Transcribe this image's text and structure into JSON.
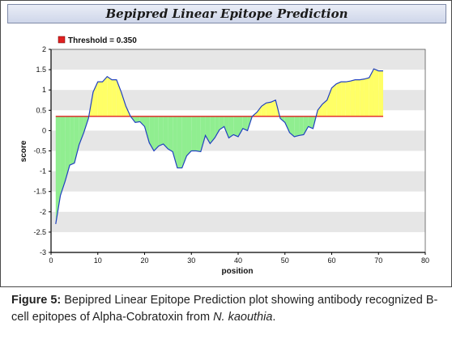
{
  "chart_data": {
    "type": "area",
    "title": "Bepipred Linear Epitope Prediction",
    "legend_label": "Threshold = 0.350",
    "threshold": 0.35,
    "xlabel": "position",
    "ylabel": "score",
    "xlim": [
      0,
      80
    ],
    "ylim": [
      -3,
      2
    ],
    "x_ticks": [
      "0",
      "10",
      "20",
      "30",
      "40",
      "50",
      "60",
      "70",
      "80"
    ],
    "y_ticks": [
      "2",
      "1.5",
      "1",
      "0.5",
      "0",
      "-0.5",
      "-1",
      "-1.5",
      "-2",
      "-2.5",
      "-3"
    ],
    "colors": {
      "line": "#2040c0",
      "threshold": "#e02020",
      "above": "#ffff66",
      "below": "#90ee90",
      "band": "#e6e6e6"
    },
    "x": [
      1,
      2,
      3,
      4,
      5,
      6,
      7,
      8,
      9,
      10,
      11,
      12,
      13,
      14,
      15,
      16,
      17,
      18,
      19,
      20,
      21,
      22,
      23,
      24,
      25,
      26,
      27,
      28,
      29,
      30,
      31,
      32,
      33,
      34,
      35,
      36,
      37,
      38,
      39,
      40,
      41,
      42,
      43,
      44,
      45,
      46,
      47,
      48,
      49,
      50,
      51,
      52,
      53,
      54,
      55,
      56,
      57,
      58,
      59,
      60,
      61,
      62,
      63,
      64,
      65,
      66,
      67,
      68,
      69,
      70,
      71
    ],
    "values": [
      -2.3,
      -1.6,
      -1.25,
      -0.85,
      -0.8,
      -0.35,
      -0.05,
      0.3,
      0.95,
      1.2,
      1.2,
      1.33,
      1.25,
      1.25,
      0.95,
      0.6,
      0.35,
      0.2,
      0.22,
      0.1,
      -0.3,
      -0.5,
      -0.38,
      -0.33,
      -0.45,
      -0.52,
      -0.92,
      -0.92,
      -0.62,
      -0.5,
      -0.5,
      -0.52,
      -0.12,
      -0.32,
      -0.18,
      0.02,
      0.1,
      -0.18,
      -0.1,
      -0.15,
      0.05,
      0.0,
      0.35,
      0.45,
      0.6,
      0.68,
      0.7,
      0.75,
      0.3,
      0.2,
      -0.05,
      -0.15,
      -0.12,
      -0.1,
      0.1,
      0.05,
      0.5,
      0.65,
      0.75,
      1.05,
      1.15,
      1.2,
      1.2,
      1.22,
      1.25,
      1.25,
      1.27,
      1.3,
      1.52,
      1.47,
      1.47
    ]
  },
  "caption": {
    "label": "Figure 5:",
    "text_a": " Bepipred Linear Epitope Prediction plot showing antibody recognized B-cell epitopes of Alpha-Cobratoxin from ",
    "species": "N. kaouthia",
    "text_b": "."
  }
}
